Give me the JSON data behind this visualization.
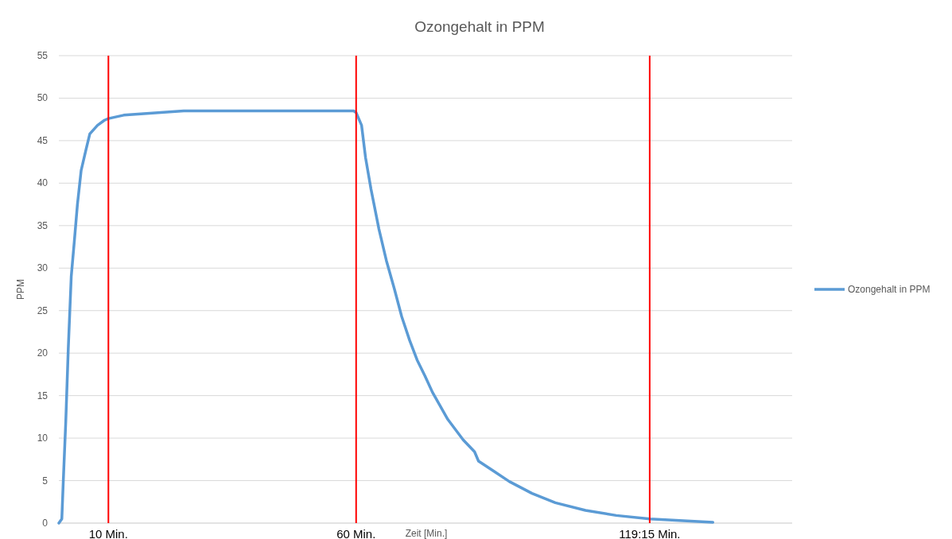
{
  "chart_data": {
    "type": "line",
    "title": "Ozongehalt in PPM",
    "xlabel": "Zeit [Min.]",
    "ylabel": "PPM",
    "x": [
      0,
      0.6,
      0.9,
      1.4,
      1.9,
      2.5,
      3.1,
      3.75,
      4.5,
      5.5,
      6.25,
      7.8,
      9.2,
      10,
      13.1,
      25.2,
      59.5,
      60,
      61.1,
      61.9,
      63,
      64.6,
      66.1,
      67.7,
      69.2,
      70.8,
      72.3,
      73.9,
      75.4,
      78.5,
      81.6,
      83.9,
      84.7,
      87.8,
      90.9,
      95.5,
      100.2,
      106.3,
      112.5,
      119.3,
      132
    ],
    "series": [
      {
        "name": "Ozongehalt in PPM",
        "color": "#5b9bd5",
        "values": [
          0,
          0.5,
          5,
          12,
          20.5,
          29,
          33,
          37.5,
          41.5,
          44,
          45.8,
          46.8,
          47.4,
          47.6,
          48,
          48.5,
          48.5,
          48.3,
          46.8,
          43,
          39.3,
          34.6,
          30.9,
          27.6,
          24.3,
          21.5,
          19.2,
          17.3,
          15.4,
          12.2,
          9.8,
          8.4,
          7.3,
          6.1,
          4.9,
          3.5,
          2.4,
          1.5,
          0.9,
          0.5,
          0.1
        ]
      }
    ],
    "xlim": [
      0,
      148
    ],
    "ylim": [
      0,
      55
    ],
    "yticks": [
      0,
      5,
      10,
      15,
      20,
      25,
      30,
      35,
      40,
      45,
      50,
      55
    ],
    "tick_labels": "y",
    "grid": "y",
    "legend": "right",
    "marker": "none",
    "line_style": "solid",
    "ref_lines": [
      {
        "axis": "x",
        "value": 10,
        "label": "10 Min.",
        "color": "#ff0000"
      },
      {
        "axis": "x",
        "value": 60,
        "label": "60 Min.",
        "color": "#ff0000"
      },
      {
        "axis": "x",
        "value": 119.25,
        "label": "119:15 Min.",
        "color": "#ff0000"
      }
    ]
  }
}
